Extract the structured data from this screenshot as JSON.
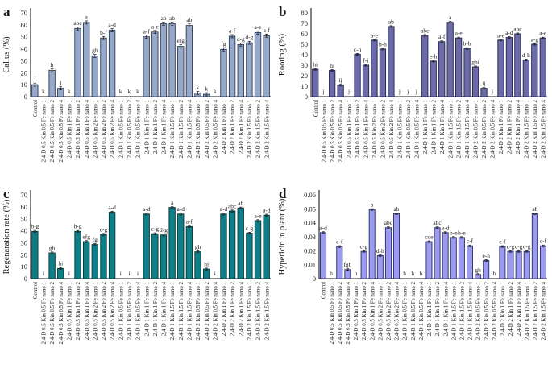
{
  "figure": {
    "description": "Four-panel bar chart figure",
    "panel_letters": [
      "a",
      "b",
      "c",
      "d"
    ]
  },
  "categories": [
    "Control",
    "2,4-D 0.5 Kin 0.5 Fe nano 1",
    "2,4-D 0.5 Kin 0.5 Fe nano 2",
    "2,4-D 0.5 Kin 0.5 Fe nano 4",
    "2,4-D 0.5 Kin 1 Fe nano 1",
    "2,4-D 0.5 Kin 1 Fe nano 2",
    "2,4-D 0.5 Kin 1 Fe nano 4",
    "2,4-D 0.5 Kin 2 Fe nano 1",
    "2,4-D 0.5 Kin 2 Fe nano 2",
    "2,4-D 0.5 Kin 2 Fe nano 4",
    "2,4-D 1 Kin 0.5 Fe nano 1",
    "2,4-D 1 Kin 0.5 Fe nano 2",
    "2,4-D 1 Kin 0.5 Fe nano 4",
    "2,4-D 1 Kin 1 Fe nano 1",
    "2,4-D 1 Kin 1 Fe nano 2",
    "2,4-D 1 Kin 1 Fe nano 4",
    "2,4-D 1 Kin 1.5 Fe nano 1",
    "2,4-D 1 Kin 1.5 Fe nano 2",
    "2,4-D 1 Kin 1.5 Fe nano 4",
    "2,4-D 2 Kin 0.5 Fe nano 1",
    "2,4-D 2 Kin 0.5 Fe nano 2",
    "2,4-D 2 Kin 0.5 Fe nano 4",
    "2,4-D 2 Kin 1 Fe nano 1",
    "2,4-D 2 Kin 1 Fe nano 2",
    "2,4-D 2 Kin 1 Fe nano 4",
    "2,4-D 2 Kin 1.5 Fe nano 1",
    "2,4-D 2 Kin 1.5 Fe nano 2",
    "2,4-D 2 Kin 1.5 Fe nano 4"
  ],
  "chart_data": [
    {
      "panel": "a",
      "type": "bar",
      "ylabel": "Callus (%)",
      "ylim": [
        0,
        70
      ],
      "ytick_step": 10,
      "tick_decimals": 0,
      "grid": false,
      "legend": "none",
      "bar_color": "#96a9c8",
      "bar_border": "#2c3a58",
      "error": 1.3,
      "values": [
        10,
        0,
        22,
        7,
        0,
        57,
        62,
        34,
        49,
        55.5,
        0,
        0,
        0,
        50,
        54,
        61,
        61,
        42,
        59.5,
        3,
        2,
        0,
        39.5,
        50.5,
        43.5,
        45,
        53.5,
        51
      ],
      "sig_letters": [
        "i",
        "k",
        "h",
        "j",
        "k",
        "abc",
        "a",
        "gh",
        "b-f",
        "a-d",
        "k",
        "k",
        "k",
        "a-f",
        "a-e",
        "ab",
        "ab",
        "efg",
        "ab",
        "k",
        "k",
        "k",
        "fg",
        "a-f",
        "d-g",
        "d-g",
        "a-e",
        "a-f"
      ]
    },
    {
      "panel": "b",
      "type": "bar",
      "ylabel": "Rooting (%)",
      "ylim": [
        0,
        80
      ],
      "ytick_step": 10,
      "tick_decimals": 0,
      "grid": false,
      "legend": "none",
      "bar_color": "#6a6ba8",
      "bar_border": "#22234f",
      "error": 0.8,
      "values": [
        26,
        0,
        25,
        11,
        0,
        40.5,
        30,
        54,
        45.5,
        67,
        0,
        0,
        0,
        58.5,
        34,
        52.5,
        71,
        56,
        46,
        28.5,
        8,
        0,
        54,
        56.5,
        60,
        35,
        50,
        56
      ],
      "sig_letters": [
        "hi",
        "j",
        "hi",
        "ij",
        "j",
        "c-h",
        "f-i",
        "a-e",
        "b-h",
        "ab",
        "j",
        "j",
        "j",
        "abc",
        "e-h",
        "a-f",
        "a",
        "a-e",
        "b-h",
        "ghi",
        "ij",
        "j",
        "a-e",
        "a-d",
        "abc",
        "d-h",
        "a-g",
        "a-e"
      ]
    },
    {
      "panel": "c",
      "type": "bar",
      "ylabel": "Regenaration rate (%)",
      "ylim": [
        0,
        70
      ],
      "ytick_step": 10,
      "tick_decimals": 0,
      "grid": false,
      "legend": "none",
      "bar_color": "#0f7f87",
      "bar_border": "#063539",
      "error": 0.8,
      "values": [
        39.5,
        0,
        21.5,
        8.5,
        0,
        39.5,
        31,
        28.5,
        37,
        55.5,
        0,
        0,
        0,
        54,
        37.5,
        36.5,
        59.5,
        54,
        43.5,
        22.5,
        8,
        0,
        54,
        56.5,
        59,
        38,
        48.5,
        53
      ],
      "sig_letters": [
        "b-g",
        "i",
        "gh",
        "hi",
        "i",
        "b-g",
        "efg",
        "fg",
        "c-g",
        "a-d",
        "i",
        "i",
        "i",
        "a-d",
        "c-g",
        "d-g",
        "a",
        "a-d",
        "a-f",
        "gh",
        "hi",
        "i",
        "a-d",
        "abc",
        "ab",
        "c-g",
        "a-e",
        "a-d"
      ]
    },
    {
      "panel": "d",
      "type": "bar",
      "ylabel": "Hypericin in plant (%)",
      "ylim": [
        0,
        0.06
      ],
      "ytick_step": 0.01,
      "tick_decimals": 2,
      "grid": false,
      "legend": "none",
      "bar_color": "#9b9bf0",
      "bar_border": "#2a2a66",
      "error": 0.0006,
      "values": [
        0.033,
        0,
        0.023,
        0.0065,
        0,
        0.0195,
        0.0495,
        0.0165,
        0.0365,
        0.0465,
        0,
        0,
        0,
        0.0265,
        0.0365,
        0.033,
        0.0295,
        0.0295,
        0.0235,
        0.003,
        0.013,
        0,
        0.023,
        0.0195,
        0.0195,
        0.0195,
        0.0465,
        0.0235
      ],
      "sig_letters": [
        "a-d",
        "h",
        "c-f",
        "fgh",
        "h",
        "c-g",
        "a",
        "d-h",
        "abc",
        "ab",
        "h",
        "h",
        "h",
        "cde",
        "abc",
        "a-d",
        "b-e",
        "b-e",
        "c-f",
        "gh",
        "e-h",
        "h",
        "c-f",
        "c-g",
        "c-g",
        "c-g",
        "ab",
        "c-f"
      ]
    }
  ]
}
